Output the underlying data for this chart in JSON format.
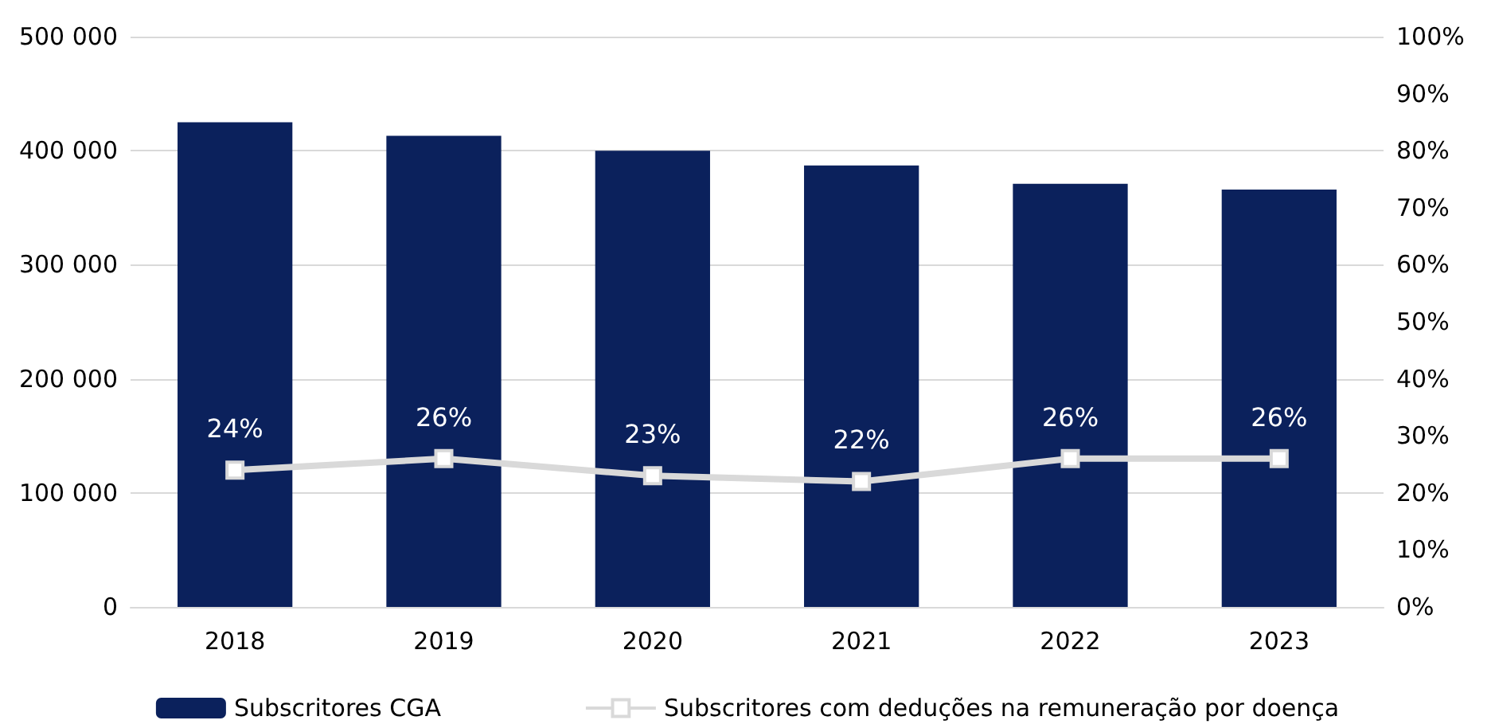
{
  "chart_data": {
    "type": "bar",
    "categories": [
      "2018",
      "2019",
      "2020",
      "2021",
      "2022",
      "2023"
    ],
    "series": [
      {
        "name": "Subscritores CGA",
        "color": "#0b215c",
        "values": [
          425000,
          413000,
          400000,
          387000,
          371000,
          366000
        ]
      },
      {
        "name": "Subscritores com deduções na remuneração por doença",
        "type": "line",
        "axis": "y2",
        "color": "#d9d9d9",
        "marker": "square",
        "values": [
          24,
          26,
          23,
          22,
          26,
          26
        ],
        "value_labels": [
          "24%",
          "26%",
          "23%",
          "22%",
          "26%",
          "26%"
        ]
      }
    ],
    "ylim": [
      0,
      500000
    ],
    "yticks": [
      {
        "value": 0,
        "label": "0"
      },
      {
        "value": 100000,
        "label": "100 000"
      },
      {
        "value": 200000,
        "label": "200 000"
      },
      {
        "value": 300000,
        "label": "300 000"
      },
      {
        "value": 400000,
        "label": "400 000"
      },
      {
        "value": 500000,
        "label": "500 000"
      }
    ],
    "y2lim": [
      0,
      100
    ],
    "y2ticks": [
      {
        "value": 0,
        "label": "0%"
      },
      {
        "value": 10,
        "label": "10%"
      },
      {
        "value": 20,
        "label": "20%"
      },
      {
        "value": 30,
        "label": "30%"
      },
      {
        "value": 40,
        "label": "40%"
      },
      {
        "value": 50,
        "label": "50%"
      },
      {
        "value": 60,
        "label": "60%"
      },
      {
        "value": 70,
        "label": "70%"
      },
      {
        "value": 80,
        "label": "80%"
      },
      {
        "value": 90,
        "label": "90%"
      },
      {
        "value": 100,
        "label": "100%"
      }
    ],
    "grid": "y",
    "legend": "bottom"
  }
}
